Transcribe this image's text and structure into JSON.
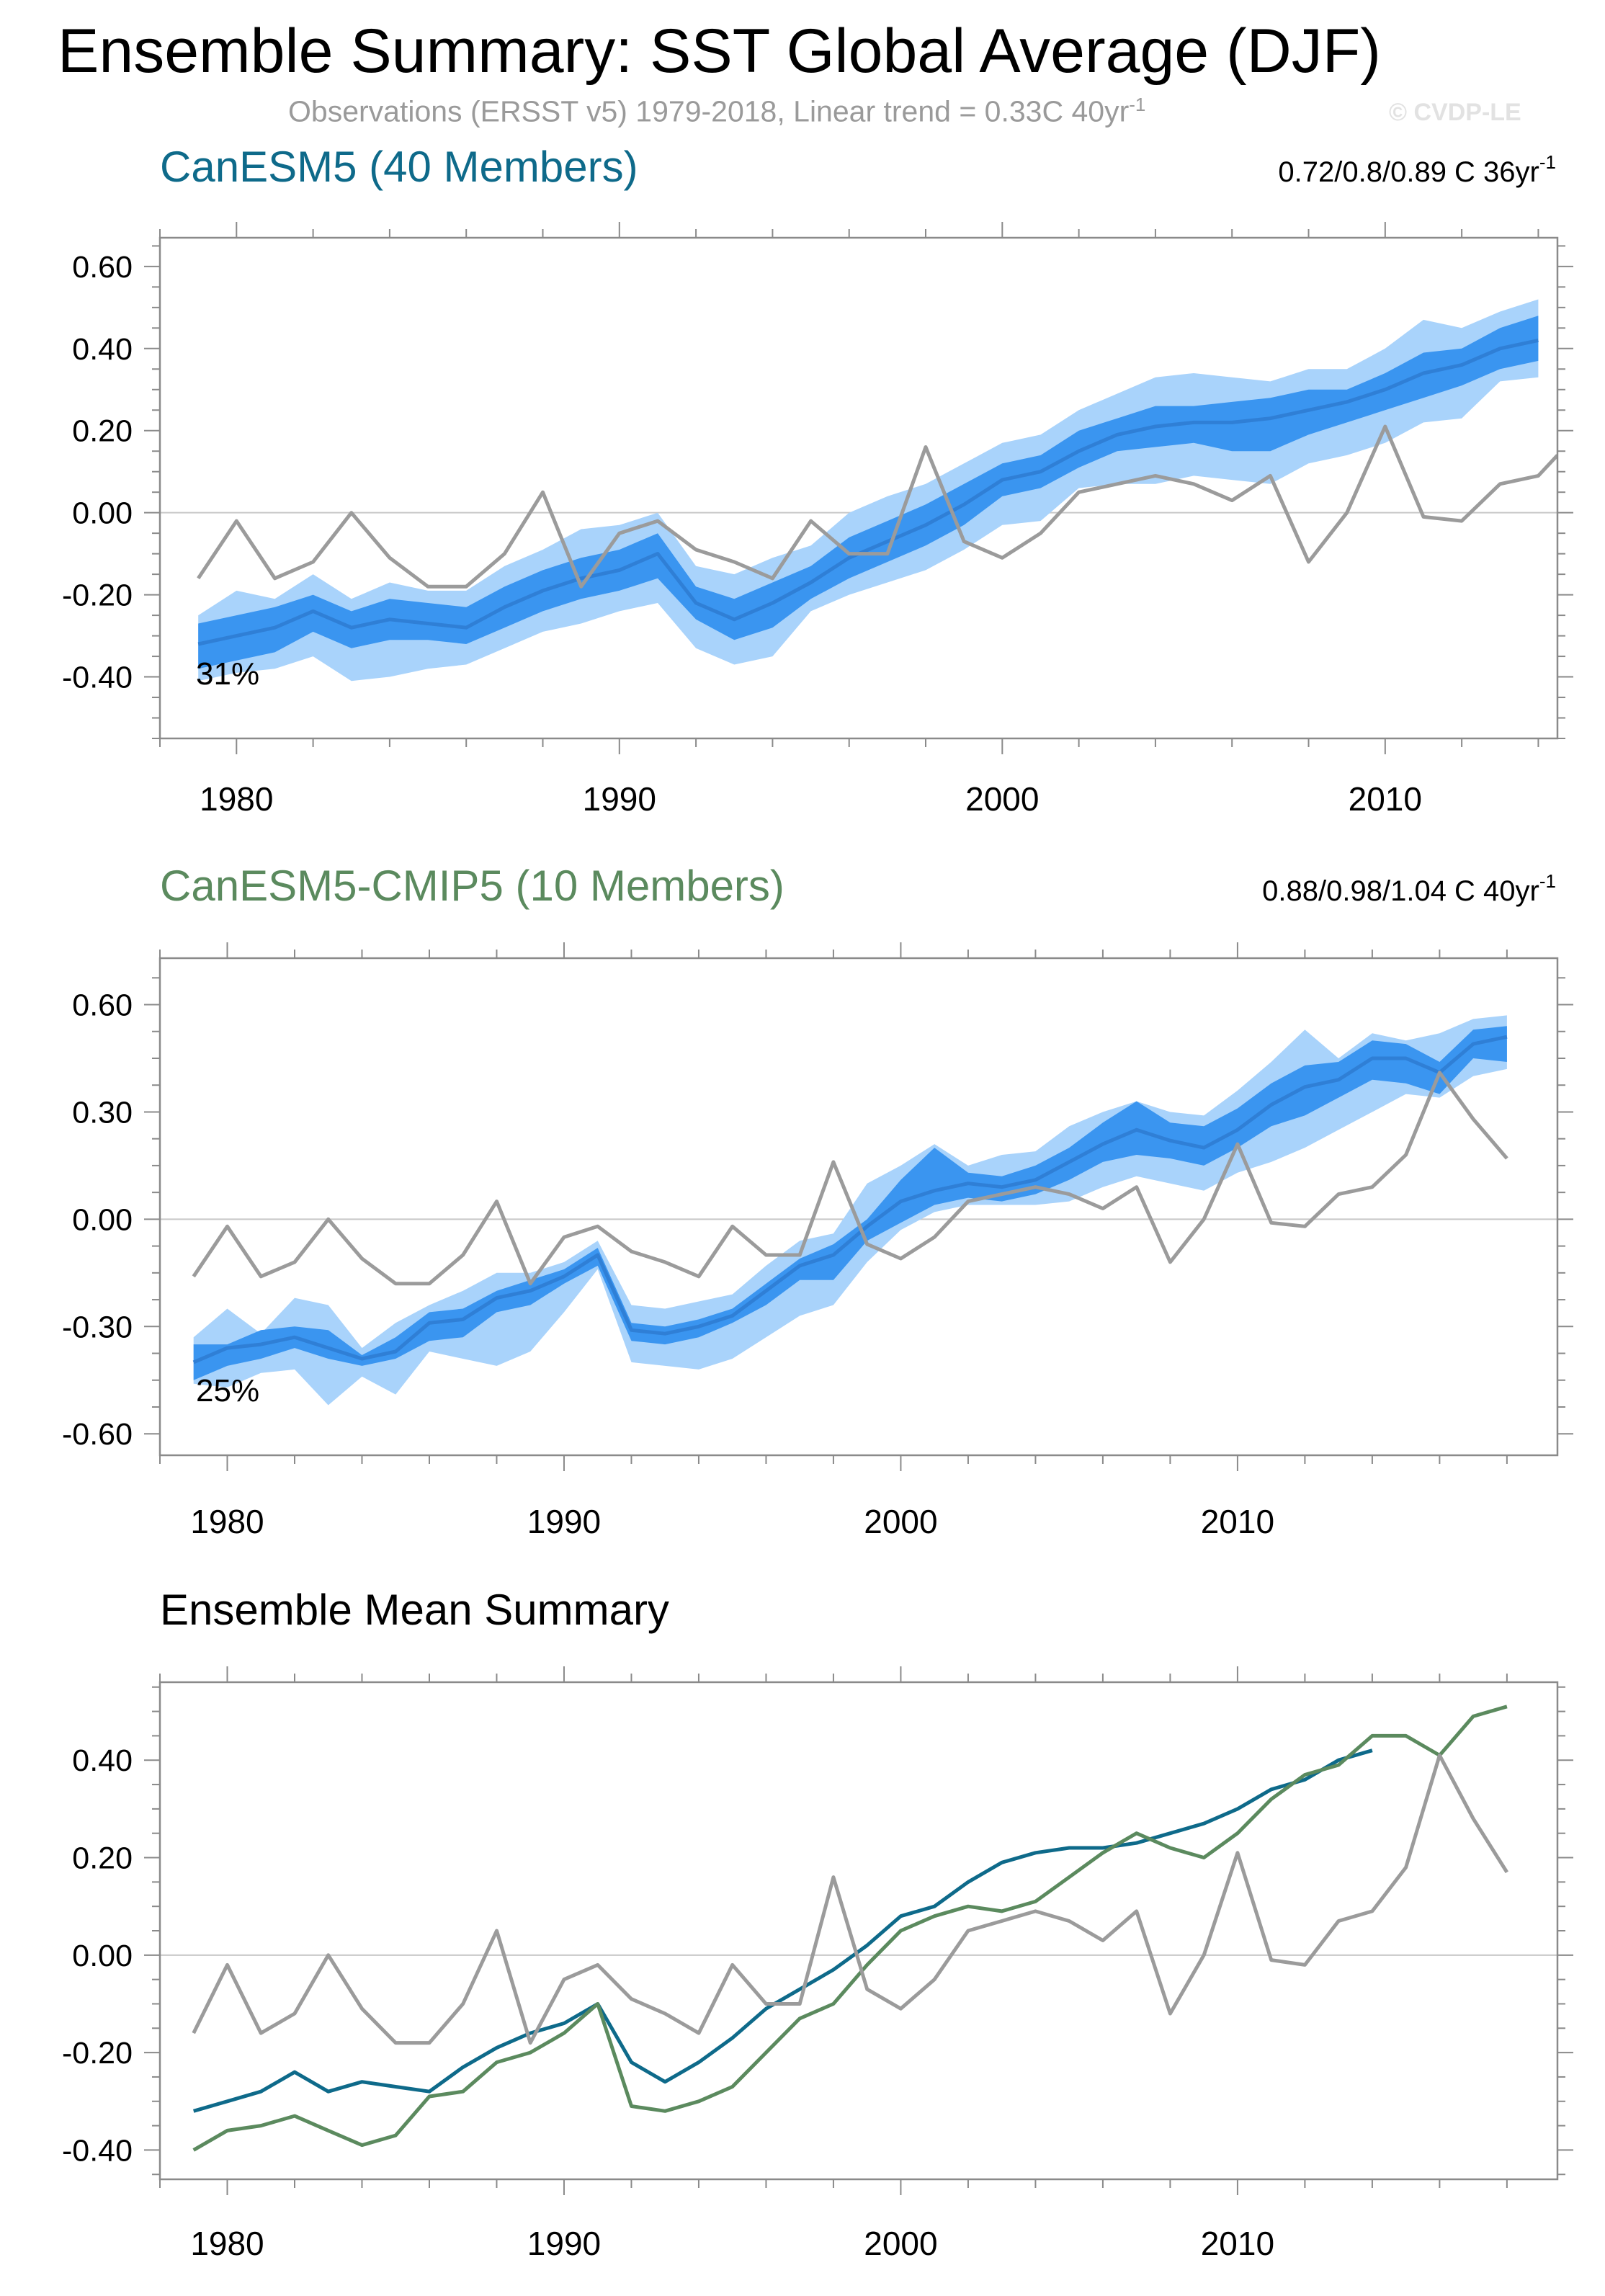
{
  "title": "Ensemble Summary: SST Global Average (DJF)",
  "subtitle": "Observations (ERSST v5) 1979-2018, Linear trend = 0.33C 40yr",
  "subtitle_sup": "-1",
  "credit": "© CVDP-LE",
  "colors": {
    "canesm5": "#0e6a8a",
    "cmip5": "#5b8a5e",
    "obs": "#9b9b9b",
    "spread_outer": "#a9d3fb",
    "spread_inner": "#3a95f0",
    "mean_line": "#2f7fd6",
    "axis": "#8a8a8a"
  },
  "chart_data": [
    {
      "type": "area",
      "title": "CanESM5 (40 Members)",
      "title_color": "#0e6a8a",
      "trend_label": "0.72/0.8/0.89 C 36yr",
      "trend_sup": "-1",
      "percent_label": "31%",
      "xlim": [
        1978,
        2014.5
      ],
      "ylim": [
        -0.55,
        0.67
      ],
      "yticks": [
        -0.4,
        -0.2,
        0.0,
        0.2,
        0.4,
        0.6
      ],
      "ytick_labels": [
        "-0.40",
        "-0.20",
        "0.00",
        "0.20",
        "0.40",
        "0.60"
      ],
      "xticks": [
        1980,
        1990,
        2000,
        2010
      ],
      "xtick_labels": [
        "1980",
        "1990",
        "2000",
        "2010"
      ],
      "grid": "zero-line",
      "years": [
        1979,
        1980,
        1981,
        1982,
        1983,
        1984,
        1985,
        1986,
        1987,
        1988,
        1989,
        1990,
        1991,
        1992,
        1993,
        1994,
        1995,
        1996,
        1997,
        1998,
        1999,
        2000,
        2001,
        2002,
        2003,
        2004,
        2005,
        2006,
        2007,
        2008,
        2009,
        2010,
        2011,
        2012,
        2013,
        2014
      ],
      "series": [
        {
          "role": "ensemble-mean",
          "values": [
            -0.32,
            -0.3,
            -0.28,
            -0.24,
            -0.28,
            -0.26,
            -0.27,
            -0.28,
            -0.23,
            -0.19,
            -0.16,
            -0.14,
            -0.1,
            -0.22,
            -0.26,
            -0.22,
            -0.17,
            -0.11,
            -0.07,
            -0.03,
            0.02,
            0.08,
            0.1,
            0.15,
            0.19,
            0.21,
            0.22,
            0.22,
            0.23,
            0.25,
            0.27,
            0.3,
            0.34,
            0.36,
            0.4,
            0.42
          ]
        },
        {
          "role": "spread-outer-upper",
          "values": [
            -0.25,
            -0.19,
            -0.21,
            -0.15,
            -0.21,
            -0.17,
            -0.19,
            -0.19,
            -0.13,
            -0.09,
            -0.04,
            -0.03,
            0.0,
            -0.13,
            -0.15,
            -0.11,
            -0.08,
            0.0,
            0.04,
            0.07,
            0.12,
            0.17,
            0.19,
            0.25,
            0.29,
            0.33,
            0.34,
            0.33,
            0.32,
            0.35,
            0.35,
            0.4,
            0.47,
            0.45,
            0.49,
            0.52
          ]
        },
        {
          "role": "spread-inner-upper",
          "values": [
            -0.27,
            -0.25,
            -0.23,
            -0.2,
            -0.24,
            -0.21,
            -0.22,
            -0.23,
            -0.18,
            -0.14,
            -0.11,
            -0.09,
            -0.05,
            -0.18,
            -0.21,
            -0.17,
            -0.13,
            -0.06,
            -0.02,
            0.02,
            0.07,
            0.12,
            0.14,
            0.2,
            0.23,
            0.26,
            0.26,
            0.27,
            0.28,
            0.3,
            0.3,
            0.34,
            0.39,
            0.4,
            0.45,
            0.48
          ]
        },
        {
          "role": "spread-inner-lower",
          "values": [
            -0.38,
            -0.36,
            -0.34,
            -0.29,
            -0.33,
            -0.31,
            -0.31,
            -0.32,
            -0.28,
            -0.24,
            -0.21,
            -0.19,
            -0.16,
            -0.26,
            -0.31,
            -0.28,
            -0.21,
            -0.16,
            -0.12,
            -0.08,
            -0.03,
            0.04,
            0.06,
            0.11,
            0.15,
            0.16,
            0.17,
            0.15,
            0.15,
            0.19,
            0.22,
            0.25,
            0.28,
            0.31,
            0.35,
            0.37
          ]
        },
        {
          "role": "spread-outer-lower",
          "values": [
            -0.41,
            -0.39,
            -0.38,
            -0.35,
            -0.41,
            -0.4,
            -0.38,
            -0.37,
            -0.33,
            -0.29,
            -0.27,
            -0.24,
            -0.22,
            -0.33,
            -0.37,
            -0.35,
            -0.24,
            -0.2,
            -0.17,
            -0.14,
            -0.09,
            -0.03,
            -0.02,
            0.06,
            0.07,
            0.07,
            0.09,
            0.08,
            0.07,
            0.12,
            0.14,
            0.17,
            0.22,
            0.23,
            0.32,
            0.33
          ]
        },
        {
          "role": "observations",
          "values": [
            -0.16,
            -0.02,
            -0.16,
            -0.12,
            0.0,
            -0.11,
            -0.18,
            -0.18,
            -0.1,
            0.05,
            -0.18,
            -0.05,
            -0.02,
            -0.09,
            -0.12,
            -0.16,
            -0.02,
            -0.1,
            -0.1,
            0.16,
            -0.07,
            -0.11,
            -0.05,
            0.05,
            0.07,
            0.09,
            0.07,
            0.03,
            0.09,
            -0.12,
            0.0,
            0.21,
            -0.01,
            -0.02,
            0.07,
            0.09
          ]
        }
      ],
      "obs_extra": {
        "year": 2014.5,
        "value": 0.14
      }
    },
    {
      "type": "area",
      "title": "CanESM5-CMIP5 (10 Members)",
      "title_color": "#5b8a5e",
      "trend_label": "0.88/0.98/1.04 C 40yr",
      "trend_sup": "-1",
      "percent_label": "25%",
      "xlim": [
        1978,
        2019.5
      ],
      "ylim": [
        -0.66,
        0.73
      ],
      "yticks": [
        -0.6,
        -0.3,
        0.0,
        0.3,
        0.6
      ],
      "ytick_labels": [
        "-0.60",
        "-0.30",
        "0.00",
        "0.30",
        "0.60"
      ],
      "xticks": [
        1980,
        1990,
        2000,
        2010
      ],
      "xtick_labels": [
        "1980",
        "1990",
        "2000",
        "2010"
      ],
      "grid": "zero-line",
      "years": [
        1979,
        1980,
        1981,
        1982,
        1983,
        1984,
        1985,
        1986,
        1987,
        1988,
        1989,
        1990,
        1991,
        1992,
        1993,
        1994,
        1995,
        1996,
        1997,
        1998,
        1999,
        2000,
        2001,
        2002,
        2003,
        2004,
        2005,
        2006,
        2007,
        2008,
        2009,
        2010,
        2011,
        2012,
        2013,
        2014,
        2015,
        2016,
        2017,
        2018
      ],
      "series": [
        {
          "role": "ensemble-mean",
          "values": [
            -0.4,
            -0.36,
            -0.35,
            -0.33,
            -0.36,
            -0.39,
            -0.37,
            -0.29,
            -0.28,
            -0.22,
            -0.2,
            -0.16,
            -0.1,
            -0.31,
            -0.32,
            -0.3,
            -0.27,
            -0.2,
            -0.13,
            -0.1,
            -0.02,
            0.05,
            0.08,
            0.1,
            0.09,
            0.11,
            0.16,
            0.21,
            0.25,
            0.22,
            0.2,
            0.25,
            0.32,
            0.37,
            0.39,
            0.45,
            0.45,
            0.41,
            0.49,
            0.51
          ]
        },
        {
          "role": "spread-outer-upper",
          "values": [
            -0.33,
            -0.25,
            -0.32,
            -0.22,
            -0.24,
            -0.36,
            -0.29,
            -0.24,
            -0.2,
            -0.15,
            -0.15,
            -0.12,
            -0.06,
            -0.24,
            -0.25,
            -0.23,
            -0.21,
            -0.13,
            -0.06,
            -0.04,
            0.1,
            0.15,
            0.21,
            0.15,
            0.18,
            0.19,
            0.26,
            0.3,
            0.33,
            0.3,
            0.29,
            0.36,
            0.44,
            0.53,
            0.45,
            0.52,
            0.5,
            0.52,
            0.56,
            0.57
          ]
        },
        {
          "role": "spread-inner-upper",
          "values": [
            -0.35,
            -0.35,
            -0.31,
            -0.3,
            -0.31,
            -0.38,
            -0.33,
            -0.26,
            -0.25,
            -0.2,
            -0.17,
            -0.14,
            -0.08,
            -0.29,
            -0.3,
            -0.28,
            -0.25,
            -0.18,
            -0.11,
            -0.07,
            0.0,
            0.11,
            0.2,
            0.13,
            0.12,
            0.15,
            0.2,
            0.27,
            0.33,
            0.27,
            0.26,
            0.31,
            0.38,
            0.43,
            0.44,
            0.5,
            0.49,
            0.44,
            0.53,
            0.54
          ]
        },
        {
          "role": "spread-inner-lower",
          "values": [
            -0.45,
            -0.41,
            -0.39,
            -0.36,
            -0.39,
            -0.41,
            -0.39,
            -0.34,
            -0.33,
            -0.26,
            -0.24,
            -0.18,
            -0.13,
            -0.34,
            -0.35,
            -0.33,
            -0.29,
            -0.24,
            -0.17,
            -0.17,
            -0.06,
            -0.01,
            0.04,
            0.06,
            0.05,
            0.07,
            0.11,
            0.16,
            0.18,
            0.17,
            0.15,
            0.2,
            0.26,
            0.29,
            0.34,
            0.39,
            0.38,
            0.35,
            0.45,
            0.44
          ]
        },
        {
          "role": "spread-outer-lower",
          "values": [
            -0.46,
            -0.47,
            -0.43,
            -0.42,
            -0.52,
            -0.44,
            -0.49,
            -0.37,
            -0.39,
            -0.41,
            -0.37,
            -0.26,
            -0.14,
            -0.4,
            -0.41,
            -0.42,
            -0.39,
            -0.33,
            -0.27,
            -0.24,
            -0.12,
            -0.03,
            0.02,
            0.04,
            0.04,
            0.04,
            0.05,
            0.09,
            0.12,
            0.1,
            0.08,
            0.13,
            0.16,
            0.2,
            0.25,
            0.3,
            0.35,
            0.34,
            0.4,
            0.42
          ]
        },
        {
          "role": "observations",
          "values": [
            -0.16,
            -0.02,
            -0.16,
            -0.12,
            0.0,
            -0.11,
            -0.18,
            -0.18,
            -0.1,
            0.05,
            -0.18,
            -0.05,
            -0.02,
            -0.09,
            -0.12,
            -0.16,
            -0.02,
            -0.1,
            -0.1,
            0.16,
            -0.07,
            -0.11,
            -0.05,
            0.05,
            0.07,
            0.09,
            0.07,
            0.03,
            0.09,
            -0.12,
            0.0,
            0.21,
            -0.01,
            -0.02,
            0.07,
            0.09,
            0.18,
            0.41,
            0.28,
            0.17
          ]
        }
      ]
    },
    {
      "type": "line",
      "title": "Ensemble Mean Summary",
      "title_color": "#000000",
      "xlim": [
        1978,
        2019.5
      ],
      "ylim": [
        -0.46,
        0.56
      ],
      "yticks": [
        -0.4,
        -0.2,
        0.0,
        0.2,
        0.4
      ],
      "ytick_labels": [
        "-0.40",
        "-0.20",
        "0.00",
        "0.20",
        "0.40"
      ],
      "xticks": [
        1980,
        1990,
        2000,
        2010
      ],
      "xtick_labels": [
        "1980",
        "1990",
        "2000",
        "2010"
      ],
      "grid": "zero-line",
      "series": [
        {
          "role": "canesm5",
          "color": "#0e6a8a",
          "start_year": 1979,
          "values": [
            -0.32,
            -0.3,
            -0.28,
            -0.24,
            -0.28,
            -0.26,
            -0.27,
            -0.28,
            -0.23,
            -0.19,
            -0.16,
            -0.14,
            -0.1,
            -0.22,
            -0.26,
            -0.22,
            -0.17,
            -0.11,
            -0.07,
            -0.03,
            0.02,
            0.08,
            0.1,
            0.15,
            0.19,
            0.21,
            0.22,
            0.22,
            0.23,
            0.25,
            0.27,
            0.3,
            0.34,
            0.36,
            0.4,
            0.42
          ]
        },
        {
          "role": "canesm5-cmip5",
          "color": "#5b8a5e",
          "start_year": 1979,
          "values": [
            -0.4,
            -0.36,
            -0.35,
            -0.33,
            -0.36,
            -0.39,
            -0.37,
            -0.29,
            -0.28,
            -0.22,
            -0.2,
            -0.16,
            -0.1,
            -0.31,
            -0.32,
            -0.3,
            -0.27,
            -0.2,
            -0.13,
            -0.1,
            -0.02,
            0.05,
            0.08,
            0.1,
            0.09,
            0.11,
            0.16,
            0.21,
            0.25,
            0.22,
            0.2,
            0.25,
            0.32,
            0.37,
            0.39,
            0.45,
            0.45,
            0.41,
            0.49,
            0.51
          ]
        },
        {
          "role": "observations",
          "color": "#9b9b9b",
          "start_year": 1979,
          "values": [
            -0.16,
            -0.02,
            -0.16,
            -0.12,
            0.0,
            -0.11,
            -0.18,
            -0.18,
            -0.1,
            0.05,
            -0.18,
            -0.05,
            -0.02,
            -0.09,
            -0.12,
            -0.16,
            -0.02,
            -0.1,
            -0.1,
            0.16,
            -0.07,
            -0.11,
            -0.05,
            0.05,
            0.07,
            0.09,
            0.07,
            0.03,
            0.09,
            -0.12,
            0.0,
            0.21,
            -0.01,
            -0.02,
            0.07,
            0.09,
            0.18,
            0.41,
            0.28,
            0.17
          ]
        }
      ]
    }
  ]
}
